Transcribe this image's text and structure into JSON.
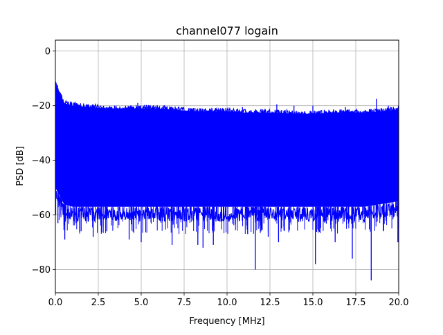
{
  "chart_data": {
    "type": "line",
    "title": "channel077 logain",
    "xlabel": "Frequency [MHz]",
    "ylabel": "PSD [dB]",
    "xlim": [
      0,
      20
    ],
    "ylim": [
      -88.5,
      4
    ],
    "x_ticks": [
      0.0,
      2.5,
      5.0,
      7.5,
      10.0,
      12.5,
      15.0,
      17.5,
      20.0
    ],
    "x_tick_labels": [
      "0.0",
      "2.5",
      "5.0",
      "7.5",
      "10.0",
      "12.5",
      "15.0",
      "17.5",
      "20.0"
    ],
    "y_ticks": [
      0,
      -20,
      -40,
      -60,
      -80
    ],
    "y_tick_labels": [
      "0",
      "−20",
      "−40",
      "−60",
      "−80"
    ],
    "grid": true,
    "legend": "none",
    "series": [
      {
        "color": "#0000ff",
        "x": [
          0.0,
          0.5,
          1.0,
          2.0,
          3.0,
          4.0,
          5.0,
          6.0,
          7.0,
          8.0,
          9.0,
          10.0,
          11.0,
          12.0,
          13.0,
          14.0,
          15.0,
          16.0,
          17.0,
          18.0,
          19.0,
          20.0
        ],
        "upper": [
          -12,
          -19,
          -20,
          -20.5,
          -21,
          -21,
          -21,
          -21,
          -21.5,
          -22,
          -22,
          -22,
          -22.5,
          -22.5,
          -22.5,
          -23,
          -23,
          -22.5,
          -22.5,
          -22.5,
          -22,
          -21.5
        ],
        "lower": [
          -50,
          -56,
          -57,
          -57,
          -57,
          -57,
          -57,
          -57,
          -57,
          -57,
          -57,
          -57,
          -57,
          -57,
          -57,
          -57,
          -57,
          -57,
          -57,
          -57,
          -56,
          -55
        ]
      }
    ],
    "spikes_up": [
      {
        "x": 0.02,
        "y": -12
      },
      {
        "x": 4.8,
        "y": -19
      },
      {
        "x": 6.3,
        "y": -20
      },
      {
        "x": 10.9,
        "y": -20.5
      },
      {
        "x": 12.9,
        "y": -19.5
      },
      {
        "x": 13.9,
        "y": -20
      },
      {
        "x": 15.0,
        "y": -20
      },
      {
        "x": 16.9,
        "y": -20.5
      },
      {
        "x": 18.7,
        "y": -17.5
      },
      {
        "x": 19.4,
        "y": -20
      },
      {
        "x": 19.9,
        "y": -21
      }
    ],
    "spikes_down": [
      {
        "x": 0.15,
        "y": -63
      },
      {
        "x": 0.55,
        "y": -69
      },
      {
        "x": 1.5,
        "y": -66
      },
      {
        "x": 2.2,
        "y": -68
      },
      {
        "x": 3.0,
        "y": -66
      },
      {
        "x": 4.3,
        "y": -69
      },
      {
        "x": 5.0,
        "y": -70
      },
      {
        "x": 6.8,
        "y": -71
      },
      {
        "x": 8.3,
        "y": -71
      },
      {
        "x": 8.6,
        "y": -72
      },
      {
        "x": 9.2,
        "y": -71
      },
      {
        "x": 11.2,
        "y": -67
      },
      {
        "x": 11.65,
        "y": -80
      },
      {
        "x": 12.4,
        "y": -68
      },
      {
        "x": 13.0,
        "y": -70
      },
      {
        "x": 15.15,
        "y": -78
      },
      {
        "x": 16.3,
        "y": -70
      },
      {
        "x": 17.3,
        "y": -76
      },
      {
        "x": 18.4,
        "y": -84
      },
      {
        "x": 19.1,
        "y": -66
      },
      {
        "x": 19.95,
        "y": -70
      }
    ]
  }
}
